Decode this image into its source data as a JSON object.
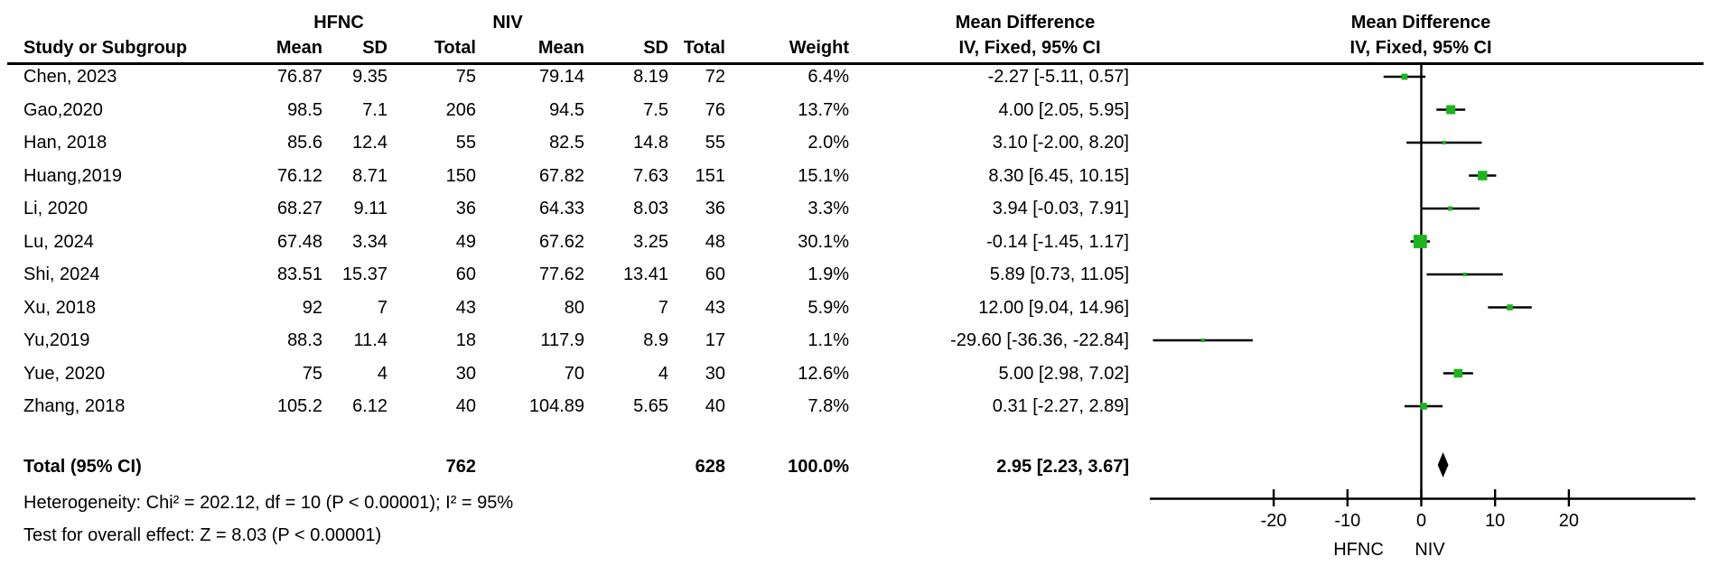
{
  "header": {
    "group1": "HFNC",
    "group2": "NIV",
    "col_study": "Study or Subgroup",
    "col_mean": "Mean",
    "col_sd": "SD",
    "col_total": "Total",
    "col_weight": "Weight",
    "effect_title": "Mean Difference",
    "effect_subtitle": "IV, Fixed, 95% CI"
  },
  "chart_data": {
    "type": "forest",
    "effect_measure": "Mean Difference IV, Fixed, 95% CI",
    "groups": [
      "HFNC",
      "NIV"
    ],
    "studies": [
      {
        "name": "Chen, 2023",
        "mean1": "76.87",
        "sd1": "9.35",
        "n1": "75",
        "mean2": "79.14",
        "sd2": "8.19",
        "n2": "72",
        "weight": "6.4%",
        "weight_pct": 6.4,
        "md": -2.27,
        "lo": -5.11,
        "hi": 0.57,
        "ci_label": "-2.27 [-5.11, 0.57]"
      },
      {
        "name": "Gao,2020",
        "mean1": "98.5",
        "sd1": "7.1",
        "n1": "206",
        "mean2": "94.5",
        "sd2": "7.5",
        "n2": "76",
        "weight": "13.7%",
        "weight_pct": 13.7,
        "md": 4.0,
        "lo": 2.05,
        "hi": 5.95,
        "ci_label": "4.00 [2.05, 5.95]"
      },
      {
        "name": "Han, 2018",
        "mean1": "85.6",
        "sd1": "12.4",
        "n1": "55",
        "mean2": "82.5",
        "sd2": "14.8",
        "n2": "55",
        "weight": "2.0%",
        "weight_pct": 2.0,
        "md": 3.1,
        "lo": -2.0,
        "hi": 8.2,
        "ci_label": "3.10 [-2.00, 8.20]"
      },
      {
        "name": "Huang,2019",
        "mean1": "76.12",
        "sd1": "8.71",
        "n1": "150",
        "mean2": "67.82",
        "sd2": "7.63",
        "n2": "151",
        "weight": "15.1%",
        "weight_pct": 15.1,
        "md": 8.3,
        "lo": 6.45,
        "hi": 10.15,
        "ci_label": "8.30 [6.45, 10.15]"
      },
      {
        "name": "Li, 2020",
        "mean1": "68.27",
        "sd1": "9.11",
        "n1": "36",
        "mean2": "64.33",
        "sd2": "8.03",
        "n2": "36",
        "weight": "3.3%",
        "weight_pct": 3.3,
        "md": 3.94,
        "lo": -0.03,
        "hi": 7.91,
        "ci_label": "3.94 [-0.03, 7.91]"
      },
      {
        "name": "Lu, 2024",
        "mean1": "67.48",
        "sd1": "3.34",
        "n1": "49",
        "mean2": "67.62",
        "sd2": "3.25",
        "n2": "48",
        "weight": "30.1%",
        "weight_pct": 30.1,
        "md": -0.14,
        "lo": -1.45,
        "hi": 1.17,
        "ci_label": "-0.14 [-1.45, 1.17]"
      },
      {
        "name": "Shi, 2024",
        "mean1": "83.51",
        "sd1": "15.37",
        "n1": "60",
        "mean2": "77.62",
        "sd2": "13.41",
        "n2": "60",
        "weight": "1.9%",
        "weight_pct": 1.9,
        "md": 5.89,
        "lo": 0.73,
        "hi": 11.05,
        "ci_label": "5.89 [0.73, 11.05]"
      },
      {
        "name": "Xu, 2018",
        "mean1": "92",
        "sd1": "7",
        "n1": "43",
        "mean2": "80",
        "sd2": "7",
        "n2": "43",
        "weight": "5.9%",
        "weight_pct": 5.9,
        "md": 12.0,
        "lo": 9.04,
        "hi": 14.96,
        "ci_label": "12.00 [9.04, 14.96]"
      },
      {
        "name": "Yu,2019",
        "mean1": "88.3",
        "sd1": "11.4",
        "n1": "18",
        "mean2": "117.9",
        "sd2": "8.9",
        "n2": "17",
        "weight": "1.1%",
        "weight_pct": 1.1,
        "md": -29.6,
        "lo": -36.36,
        "hi": -22.84,
        "ci_label": "-29.60 [-36.36, -22.84]"
      },
      {
        "name": "Yue, 2020",
        "mean1": "75",
        "sd1": "4",
        "n1": "30",
        "mean2": "70",
        "sd2": "4",
        "n2": "30",
        "weight": "12.6%",
        "weight_pct": 12.6,
        "md": 5.0,
        "lo": 2.98,
        "hi": 7.02,
        "ci_label": "5.00 [2.98, 7.02]"
      },
      {
        "name": "Zhang, 2018",
        "mean1": "105.2",
        "sd1": "6.12",
        "n1": "40",
        "mean2": "104.89",
        "sd2": "5.65",
        "n2": "40",
        "weight": "7.8%",
        "weight_pct": 7.8,
        "md": 0.31,
        "lo": -2.27,
        "hi": 2.89,
        "ci_label": "0.31 [-2.27, 2.89]"
      }
    ],
    "total": {
      "label": "Total (95% CI)",
      "n1": "762",
      "n2": "628",
      "weight": "100.0%",
      "md": 2.95,
      "lo": 2.23,
      "hi": 3.67,
      "ci_label": "2.95 [2.23, 3.67]"
    },
    "heterogeneity": "Heterogeneity: Chi² = 202.12, df = 10 (P < 0.00001); I² = 95%",
    "overall_effect": "Test for overall effect: Z = 8.03 (P < 0.00001)",
    "axis": {
      "ticks": [
        -20,
        -10,
        0,
        10,
        20
      ],
      "tick_labels": [
        "-20",
        "-10",
        "0",
        "10",
        "20"
      ],
      "range": [
        -37,
        37
      ],
      "label_left": "HFNC",
      "label_right": "NIV"
    },
    "colors": {
      "marker": "#1eb41e",
      "line": "#000000"
    }
  }
}
